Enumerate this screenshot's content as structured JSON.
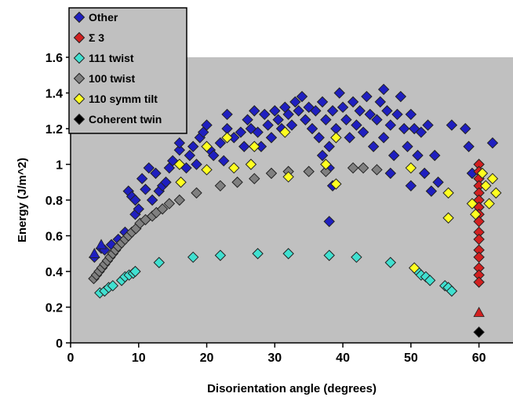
{
  "chart_data": {
    "type": "scatter",
    "xlabel": "Disorientation angle (degrees)",
    "ylabel": "Energy (J/m^2)",
    "xlim": [
      0,
      65
    ],
    "ylim": [
      0,
      1.6
    ],
    "x_ticks": [
      "0",
      "10",
      "20",
      "30",
      "40",
      "50",
      "60"
    ],
    "y_ticks": [
      "0",
      "0.2",
      "0.4",
      "0.6",
      "0.8",
      "1",
      "1.2",
      "1.4",
      "1.6"
    ],
    "background": "#c0c0c0",
    "grid": false,
    "legend_position": "top-left",
    "series": [
      {
        "name": "Other",
        "marker": "diamond",
        "color": "#1f1fc0",
        "points": [
          [
            3.5,
            0.48
          ],
          [
            4.5,
            0.53
          ],
          [
            5.0,
            0.52
          ],
          [
            6.0,
            0.55
          ],
          [
            7.0,
            0.58
          ],
          [
            8.0,
            0.62
          ],
          [
            8.5,
            0.85
          ],
          [
            9.0,
            0.82
          ],
          [
            9.5,
            0.8
          ],
          [
            9.5,
            0.72
          ],
          [
            10.0,
            0.75
          ],
          [
            10.5,
            0.92
          ],
          [
            11.0,
            0.86
          ],
          [
            11.5,
            0.98
          ],
          [
            12.0,
            0.8
          ],
          [
            12.5,
            0.95
          ],
          [
            13.0,
            0.85
          ],
          [
            13.5,
            0.88
          ],
          [
            14.0,
            0.9
          ],
          [
            14.5,
            0.98
          ],
          [
            15.0,
            1.02
          ],
          [
            16.0,
            1.08
          ],
          [
            16.0,
            1.12
          ],
          [
            17.0,
            0.98
          ],
          [
            17.5,
            1.05
          ],
          [
            18.0,
            1.1
          ],
          [
            18.5,
            1.0
          ],
          [
            19.0,
            1.15
          ],
          [
            19.5,
            1.18
          ],
          [
            20.0,
            1.22
          ],
          [
            20.5,
            1.08
          ],
          [
            21.0,
            1.05
          ],
          [
            22.0,
            1.12
          ],
          [
            22.5,
            1.02
          ],
          [
            23.0,
            1.2
          ],
          [
            23.0,
            1.28
          ],
          [
            24.0,
            1.15
          ],
          [
            25.0,
            1.18
          ],
          [
            25.5,
            1.1
          ],
          [
            26.0,
            1.25
          ],
          [
            26.5,
            1.2
          ],
          [
            27.0,
            1.3
          ],
          [
            27.5,
            1.18
          ],
          [
            28.0,
            1.1
          ],
          [
            28.5,
            1.28
          ],
          [
            29.0,
            1.22
          ],
          [
            29.5,
            1.15
          ],
          [
            30.0,
            1.3
          ],
          [
            30.5,
            1.25
          ],
          [
            31.0,
            1.2
          ],
          [
            31.5,
            1.32
          ],
          [
            32.0,
            1.28
          ],
          [
            32.5,
            1.22
          ],
          [
            33.0,
            1.35
          ],
          [
            33.5,
            1.3
          ],
          [
            34.0,
            1.38
          ],
          [
            34.5,
            1.25
          ],
          [
            35.0,
            1.32
          ],
          [
            35.5,
            1.2
          ],
          [
            36.0,
            1.3
          ],
          [
            36.5,
            1.15
          ],
          [
            37.0,
            1.35
          ],
          [
            37.0,
            1.05
          ],
          [
            37.5,
            1.25
          ],
          [
            38.0,
            1.1
          ],
          [
            38.0,
            0.98
          ],
          [
            38.0,
            0.68
          ],
          [
            38.5,
            1.3
          ],
          [
            38.5,
            0.88
          ],
          [
            39.0,
            1.2
          ],
          [
            39.5,
            1.4
          ],
          [
            40.0,
            1.32
          ],
          [
            40.5,
            1.25
          ],
          [
            41.0,
            1.15
          ],
          [
            41.5,
            1.35
          ],
          [
            42.0,
            1.22
          ],
          [
            42.5,
            1.3
          ],
          [
            43.0,
            1.18
          ],
          [
            43.5,
            1.38
          ],
          [
            44.0,
            1.28
          ],
          [
            44.5,
            1.1
          ],
          [
            45.0,
            1.25
          ],
          [
            45.5,
            1.35
          ],
          [
            46.0,
            1.42
          ],
          [
            46.0,
            1.15
          ],
          [
            46.5,
            1.3
          ],
          [
            47.0,
            1.22
          ],
          [
            47.0,
            0.95
          ],
          [
            47.5,
            1.05
          ],
          [
            48.0,
            1.28
          ],
          [
            48.5,
            1.38
          ],
          [
            49.0,
            1.2
          ],
          [
            49.5,
            1.1
          ],
          [
            50.0,
            1.28
          ],
          [
            50.0,
            0.88
          ],
          [
            50.5,
            1.2
          ],
          [
            51.0,
            1.05
          ],
          [
            51.5,
            1.18
          ],
          [
            52.0,
            0.95
          ],
          [
            52.5,
            1.22
          ],
          [
            53.0,
            0.85
          ],
          [
            53.5,
            1.05
          ],
          [
            54.0,
            0.9
          ],
          [
            56.0,
            1.22
          ],
          [
            58.0,
            1.2
          ],
          [
            58.5,
            1.1
          ],
          [
            59.0,
            0.95
          ],
          [
            62.0,
            1.12
          ]
        ]
      },
      {
        "name": "Σ 3",
        "marker": "diamond",
        "color": "#d22020",
        "points": [
          [
            60,
            1.0
          ],
          [
            60,
            0.96
          ],
          [
            60,
            0.92
          ],
          [
            60,
            0.88
          ],
          [
            60,
            0.84
          ],
          [
            60,
            0.8
          ],
          [
            60,
            0.76
          ],
          [
            60,
            0.72
          ],
          [
            60,
            0.68
          ],
          [
            60,
            0.62
          ],
          [
            60,
            0.58
          ],
          [
            60,
            0.52
          ],
          [
            60,
            0.48
          ],
          [
            60,
            0.42
          ],
          [
            60,
            0.38
          ],
          [
            60,
            0.34
          ]
        ]
      },
      {
        "name": "111 twist",
        "marker": "diamond",
        "color": "#40e0d0",
        "points": [
          [
            4.3,
            0.28
          ],
          [
            5.0,
            0.29
          ],
          [
            5.6,
            0.31
          ],
          [
            6.2,
            0.32
          ],
          [
            7.5,
            0.35
          ],
          [
            8.0,
            0.37
          ],
          [
            8.6,
            0.38
          ],
          [
            9.2,
            0.39
          ],
          [
            9.5,
            0.4
          ],
          [
            13.0,
            0.45
          ],
          [
            18.0,
            0.48
          ],
          [
            22.0,
            0.49
          ],
          [
            27.5,
            0.5
          ],
          [
            32.0,
            0.5
          ],
          [
            38.0,
            0.49
          ],
          [
            42.0,
            0.48
          ],
          [
            47.0,
            0.45
          ],
          [
            51.0,
            0.4
          ],
          [
            51.5,
            0.38
          ],
          [
            52.2,
            0.37
          ],
          [
            52.8,
            0.35
          ],
          [
            55.0,
            0.32
          ],
          [
            55.5,
            0.31
          ],
          [
            56.0,
            0.29
          ]
        ]
      },
      {
        "name": "100 twist",
        "marker": "diamond",
        "color": "#808080",
        "points": [
          [
            3.4,
            0.36
          ],
          [
            3.8,
            0.38
          ],
          [
            4.2,
            0.4
          ],
          [
            4.6,
            0.42
          ],
          [
            5.0,
            0.44
          ],
          [
            5.4,
            0.46
          ],
          [
            5.8,
            0.48
          ],
          [
            6.2,
            0.5
          ],
          [
            6.6,
            0.52
          ],
          [
            7.0,
            0.54
          ],
          [
            7.5,
            0.56
          ],
          [
            8.0,
            0.58
          ],
          [
            8.5,
            0.6
          ],
          [
            9.0,
            0.62
          ],
          [
            9.6,
            0.64
          ],
          [
            10.2,
            0.67
          ],
          [
            11.0,
            0.69
          ],
          [
            12.0,
            0.71
          ],
          [
            12.6,
            0.73
          ],
          [
            13.5,
            0.75
          ],
          [
            14.5,
            0.78
          ],
          [
            16.0,
            0.8
          ],
          [
            18.5,
            0.84
          ],
          [
            22.0,
            0.88
          ],
          [
            24.5,
            0.9
          ],
          [
            27.0,
            0.92
          ],
          [
            29.5,
            0.95
          ],
          [
            32.0,
            0.96
          ],
          [
            35.0,
            0.96
          ],
          [
            37.5,
            0.96
          ],
          [
            41.5,
            0.98
          ],
          [
            43.0,
            0.98
          ],
          [
            45.0,
            0.97
          ]
        ]
      },
      {
        "name": "110 symm tilt",
        "marker": "diamond",
        "color": "#ffff20",
        "points": [
          [
            16.0,
            1.0
          ],
          [
            16.2,
            0.9
          ],
          [
            20.0,
            1.1
          ],
          [
            20.0,
            0.97
          ],
          [
            23.0,
            1.15
          ],
          [
            24.0,
            0.98
          ],
          [
            26.5,
            1.0
          ],
          [
            27.0,
            1.1
          ],
          [
            31.5,
            1.18
          ],
          [
            32.0,
            0.93
          ],
          [
            37.5,
            1.0
          ],
          [
            39.0,
            1.15
          ],
          [
            39.0,
            0.89
          ],
          [
            50.0,
            0.98
          ],
          [
            50.5,
            0.42
          ],
          [
            55.5,
            0.84
          ],
          [
            55.5,
            0.7
          ],
          [
            59.0,
            0.78
          ],
          [
            59.5,
            0.72
          ],
          [
            60.5,
            0.95
          ],
          [
            61.0,
            0.88
          ],
          [
            61.5,
            0.78
          ],
          [
            62.0,
            0.92
          ],
          [
            62.5,
            0.84
          ]
        ]
      },
      {
        "name": "Coherent twin",
        "marker": "diamond",
        "color": "#000000",
        "points": [
          [
            60,
            0.06
          ]
        ]
      },
      {
        "name": "",
        "marker": "triangle",
        "color": "#1f1fc0",
        "points": [
          [
            3.5,
            0.5
          ],
          [
            4.5,
            0.55
          ]
        ]
      },
      {
        "name": "",
        "marker": "triangle",
        "color": "#d22020",
        "points": [
          [
            60,
            0.17
          ]
        ]
      }
    ]
  }
}
